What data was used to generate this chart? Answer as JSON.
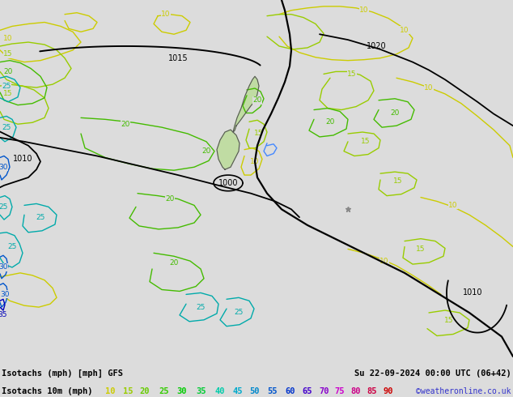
{
  "title_left": "Isotachs (mph) [mph] GFS",
  "title_right": "Su 22-09-2024 00:00 UTC (06+42)",
  "subtitle_left": "Isotachs 10m (mph)",
  "copyright": "©weatheronline.co.uk",
  "legend_values": [
    10,
    15,
    20,
    25,
    30,
    35,
    40,
    45,
    50,
    55,
    60,
    65,
    70,
    75,
    80,
    85,
    90
  ],
  "legend_colors": [
    "#cccc00",
    "#99cc00",
    "#66cc00",
    "#33cc00",
    "#00cc00",
    "#00cc33",
    "#00ccaa",
    "#00aacc",
    "#0088cc",
    "#0055cc",
    "#0033cc",
    "#4400cc",
    "#8800cc",
    "#cc00cc",
    "#cc0088",
    "#cc0044",
    "#cc0000"
  ],
  "bg_color": "#dcdcdc",
  "map_bg": "#dcdcdc",
  "bottom_bar_color": "#b4b4b4",
  "isotach_colors": {
    "10": "#cccc00",
    "15": "#99cc00",
    "20": "#44aa00",
    "25": "#00aaaa",
    "30": "#0044cc",
    "35": "#0000cc"
  },
  "pressure_color": "#000000"
}
